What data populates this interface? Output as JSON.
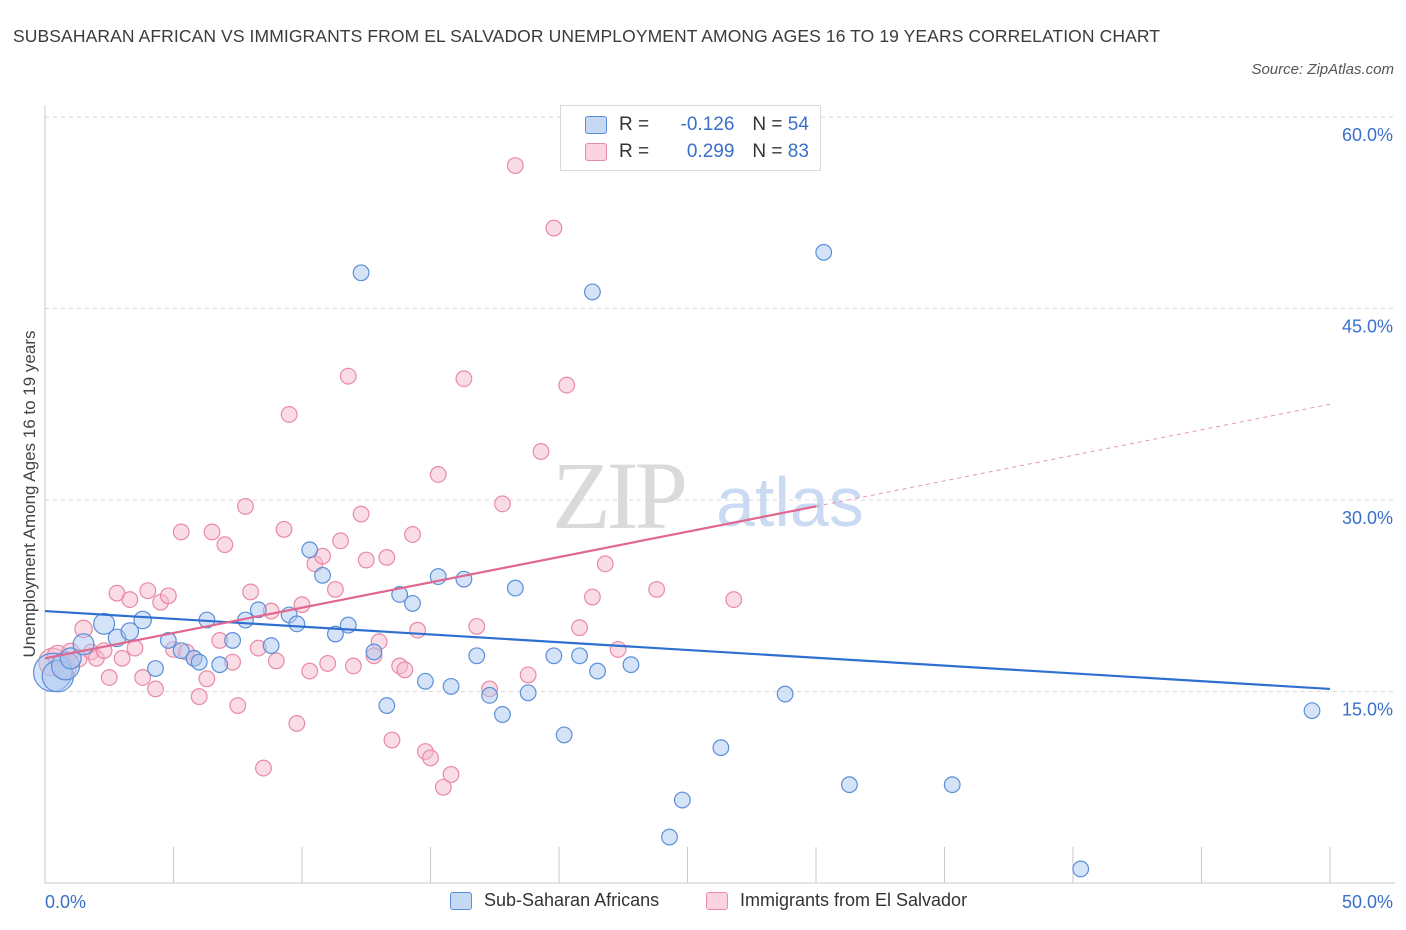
{
  "title": "SUBSAHARAN AFRICAN VS IMMIGRANTS FROM EL SALVADOR UNEMPLOYMENT AMONG AGES 16 TO 19 YEARS CORRELATION CHART",
  "source": "Source: ZipAtlas.com",
  "watermark": {
    "zip": "ZIP",
    "atlas": "atlas"
  },
  "colors": {
    "blue_fill": "#aac8f0",
    "blue_stroke": "#5b8fd9",
    "blue_line": "#2f6fd0",
    "pink_fill": "#f6b9cc",
    "pink_stroke": "#e88aa8",
    "pink_line": "#e06890",
    "axis_label": "#3a6fcb",
    "grid": "#d8d8d8"
  },
  "legend": {
    "rows": [
      {
        "r_label": "R =",
        "r_value": "-0.126",
        "n_label": "N =",
        "n_value": "54",
        "color": "blue"
      },
      {
        "r_label": "R =",
        "r_value": "0.299",
        "n_label": "N =",
        "n_value": "83",
        "color": "pink"
      }
    ]
  },
  "bottom_legend": [
    {
      "label": "Sub-Saharan Africans",
      "color": "blue"
    },
    {
      "label": "Immigrants from El Salvador",
      "color": "pink"
    }
  ],
  "chart_data": {
    "type": "scatter",
    "xlabel": "",
    "ylabel": "Unemployment Among Ages 16 to 19 years",
    "xlim": [
      0,
      50
    ],
    "ylim": [
      0,
      60
    ],
    "x_tick_labels": [
      {
        "value": 0,
        "label": "0.0%"
      },
      {
        "value": 50,
        "label": "50.0%"
      }
    ],
    "y_tick_labels": [
      {
        "value": 15,
        "label": "15.0%"
      },
      {
        "value": 30,
        "label": "30.0%"
      },
      {
        "value": 45,
        "label": "45.0%"
      },
      {
        "value": 60,
        "label": "60.0%"
      }
    ],
    "series": [
      {
        "name": "Sub-Saharan Africans",
        "color": "blue",
        "trend": {
          "x0": 0,
          "y0": 21.3,
          "x1": 50,
          "y1": 15.2
        },
        "points": [
          [
            0.3,
            16.5,
            22
          ],
          [
            0.5,
            16.2,
            18
          ],
          [
            0.8,
            17.0,
            16
          ],
          [
            1.0,
            17.6,
            12
          ],
          [
            1.5,
            18.7,
            12
          ],
          [
            2.3,
            20.3,
            12
          ],
          [
            2.8,
            19.2,
            10
          ],
          [
            3.3,
            19.7,
            10
          ],
          [
            3.8,
            20.6,
            10
          ],
          [
            4.3,
            16.8,
            9
          ],
          [
            4.8,
            19.0,
            9
          ],
          [
            5.3,
            18.2,
            9
          ],
          [
            5.8,
            17.6,
            9
          ],
          [
            6.0,
            17.3,
            9
          ],
          [
            6.3,
            20.6,
            9
          ],
          [
            6.8,
            17.1,
            9
          ],
          [
            7.3,
            19.0,
            9
          ],
          [
            7.8,
            20.6,
            9
          ],
          [
            8.3,
            21.4,
            9
          ],
          [
            8.8,
            18.6,
            9
          ],
          [
            9.5,
            21.0,
            9
          ],
          [
            9.8,
            20.3,
            9
          ],
          [
            10.3,
            26.1,
            9
          ],
          [
            10.8,
            24.1,
            9
          ],
          [
            11.3,
            19.5,
            9
          ],
          [
            11.8,
            20.2,
            9
          ],
          [
            12.3,
            47.8,
            9
          ],
          [
            12.8,
            18.1,
            9
          ],
          [
            13.3,
            13.9,
            9
          ],
          [
            13.8,
            22.6,
            9
          ],
          [
            14.3,
            21.9,
            9
          ],
          [
            14.8,
            15.8,
            9
          ],
          [
            15.3,
            24.0,
            9
          ],
          [
            15.8,
            15.4,
            9
          ],
          [
            16.3,
            23.8,
            9
          ],
          [
            16.8,
            17.8,
            9
          ],
          [
            17.3,
            14.7,
            9
          ],
          [
            17.8,
            13.2,
            9
          ],
          [
            18.3,
            23.1,
            9
          ],
          [
            18.8,
            14.9,
            9
          ],
          [
            19.8,
            17.8,
            9
          ],
          [
            20.2,
            11.6,
            9
          ],
          [
            20.8,
            17.8,
            9
          ],
          [
            21.3,
            46.3,
            9
          ],
          [
            21.5,
            16.6,
            9
          ],
          [
            22.8,
            17.1,
            9
          ],
          [
            24.3,
            3.6,
            9
          ],
          [
            24.8,
            6.5,
            9
          ],
          [
            26.3,
            10.6,
            9
          ],
          [
            28.8,
            14.8,
            9
          ],
          [
            30.3,
            49.4,
            9
          ],
          [
            31.3,
            7.7,
            9
          ],
          [
            35.3,
            7.7,
            9
          ],
          [
            40.3,
            1.1,
            9
          ],
          [
            49.3,
            13.5,
            9
          ]
        ]
      },
      {
        "name": "Immigrants from El Salvador",
        "color": "pink",
        "trend": {
          "x0": 0,
          "y0": 17.6,
          "x1": 30,
          "y1": 29.5,
          "dash_x1": 50,
          "dash_y1": 37.5
        },
        "points": [
          [
            0.3,
            17.3,
            16
          ],
          [
            0.5,
            17.8,
            12
          ],
          [
            0.8,
            16.8,
            12
          ],
          [
            1.0,
            18.1,
            10
          ],
          [
            1.3,
            17.6,
            10
          ],
          [
            1.5,
            19.9,
            10
          ],
          [
            1.8,
            18.1,
            9
          ],
          [
            2.0,
            17.6,
            9
          ],
          [
            2.3,
            18.2,
            9
          ],
          [
            2.5,
            16.1,
            9
          ],
          [
            2.8,
            22.7,
            9
          ],
          [
            3.0,
            17.6,
            9
          ],
          [
            3.3,
            22.2,
            9
          ],
          [
            3.5,
            18.4,
            9
          ],
          [
            3.8,
            16.1,
            9
          ],
          [
            4.0,
            22.9,
            9
          ],
          [
            4.3,
            15.2,
            9
          ],
          [
            4.5,
            22.0,
            9
          ],
          [
            4.8,
            22.5,
            9
          ],
          [
            5.0,
            18.3,
            9
          ],
          [
            5.3,
            27.5,
            9
          ],
          [
            5.5,
            18.1,
            9
          ],
          [
            5.8,
            17.6,
            9
          ],
          [
            6.0,
            14.6,
            9
          ],
          [
            6.3,
            16.0,
            9
          ],
          [
            6.5,
            27.5,
            9
          ],
          [
            6.8,
            19.0,
            9
          ],
          [
            7.0,
            26.5,
            9
          ],
          [
            7.3,
            17.3,
            9
          ],
          [
            7.5,
            13.9,
            9
          ],
          [
            7.8,
            29.5,
            9
          ],
          [
            8.0,
            22.8,
            9
          ],
          [
            8.3,
            18.4,
            9
          ],
          [
            8.5,
            9.0,
            9
          ],
          [
            8.8,
            21.3,
            9
          ],
          [
            9.0,
            17.4,
            9
          ],
          [
            9.3,
            27.7,
            9
          ],
          [
            9.5,
            36.7,
            9
          ],
          [
            9.8,
            12.5,
            9
          ],
          [
            10.0,
            21.8,
            9
          ],
          [
            10.3,
            16.6,
            9
          ],
          [
            10.5,
            25.0,
            9
          ],
          [
            10.8,
            25.6,
            9
          ],
          [
            11.0,
            17.2,
            9
          ],
          [
            11.3,
            23.0,
            9
          ],
          [
            11.5,
            26.8,
            9
          ],
          [
            11.8,
            39.7,
            9
          ],
          [
            12.0,
            17.0,
            9
          ],
          [
            12.3,
            28.9,
            9
          ],
          [
            12.5,
            25.3,
            9
          ],
          [
            12.8,
            17.8,
            9
          ],
          [
            13.0,
            18.9,
            9
          ],
          [
            13.3,
            25.5,
            9
          ],
          [
            13.5,
            11.2,
            9
          ],
          [
            13.8,
            17.0,
            9
          ],
          [
            14.0,
            16.7,
            9
          ],
          [
            14.3,
            27.3,
            9
          ],
          [
            14.5,
            19.8,
            9
          ],
          [
            14.8,
            10.3,
            9
          ],
          [
            15.0,
            9.8,
            9
          ],
          [
            15.3,
            32.0,
            9
          ],
          [
            15.5,
            7.5,
            9
          ],
          [
            15.8,
            8.5,
            9
          ],
          [
            16.3,
            39.5,
            9
          ],
          [
            16.8,
            20.1,
            9
          ],
          [
            17.3,
            15.2,
            9
          ],
          [
            17.8,
            29.7,
            9
          ],
          [
            18.3,
            56.2,
            9
          ],
          [
            18.8,
            16.3,
            9
          ],
          [
            19.3,
            33.8,
            9
          ],
          [
            19.8,
            51.3,
            9
          ],
          [
            20.3,
            39.0,
            9
          ],
          [
            20.8,
            20.0,
            9
          ],
          [
            21.3,
            22.4,
            9
          ],
          [
            21.8,
            25.0,
            9
          ],
          [
            22.3,
            18.3,
            9
          ],
          [
            23.8,
            23.0,
            9
          ],
          [
            26.8,
            22.2,
            9
          ]
        ]
      }
    ]
  }
}
